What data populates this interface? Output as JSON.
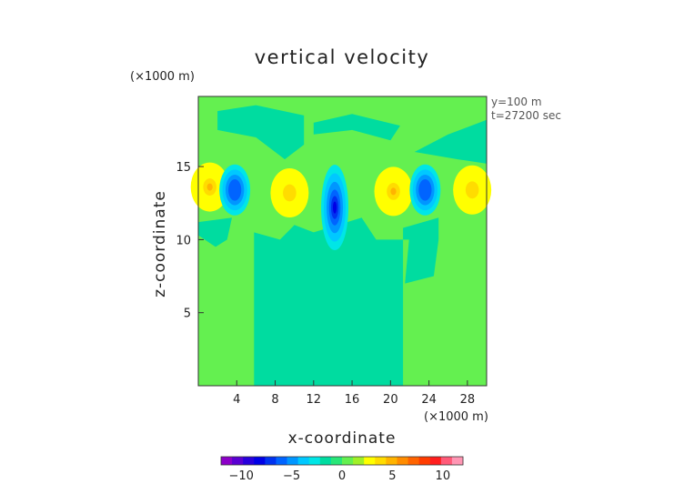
{
  "chart_data": {
    "type": "heatmap",
    "title": "vertical velocity",
    "xlabel": "x-coordinate",
    "ylabel": "z-coordinate",
    "x_unit": "(×1000 m)",
    "y_unit": "(×1000 m)",
    "annotations": [
      "y=100 m",
      "t=27200 sec"
    ],
    "xlim": [
      0,
      30
    ],
    "ylim": [
      0,
      19.8
    ],
    "xticks": [
      4,
      8,
      12,
      16,
      20,
      24,
      28
    ],
    "xtick_labels": [
      "4",
      "8",
      "12",
      "16",
      "20",
      "24",
      "28"
    ],
    "yticks": [
      5,
      10,
      15
    ],
    "ytick_labels": [
      "5",
      "10",
      "15"
    ],
    "grid": false,
    "colorbar": {
      "min": -12,
      "max": 12,
      "tick_values": [
        -10,
        -5,
        0,
        5,
        10
      ],
      "tick_labels": [
        "−10",
        "−5",
        "0",
        "5",
        "10"
      ],
      "colors": [
        "#8c00c8",
        "#5a00d2",
        "#2800dc",
        "#0000e6",
        "#0032f0",
        "#0064ff",
        "#0096ff",
        "#00c8ff",
        "#00e6e6",
        "#00dca0",
        "#28e678",
        "#64f050",
        "#a0f028",
        "#ffff00",
        "#ffdc00",
        "#ffb400",
        "#ff8c00",
        "#ff6400",
        "#ff3c00",
        "#ff1e1e",
        "#ff5a78",
        "#ff96b4"
      ]
    },
    "field_features": [
      {
        "kind": "max",
        "x": 1.2,
        "z": 13.6,
        "value": 3.2
      },
      {
        "kind": "min",
        "x": 3.8,
        "z": 13.4,
        "value": -4.5
      },
      {
        "kind": "max",
        "x": 9.5,
        "z": 13.2,
        "value": 2.6
      },
      {
        "kind": "min",
        "x": 14.2,
        "z": 12.2,
        "value": -7.0
      },
      {
        "kind": "max",
        "x": 20.3,
        "z": 13.3,
        "value": 3.1
      },
      {
        "kind": "min",
        "x": 23.6,
        "z": 13.4,
        "value": -4.5
      },
      {
        "kind": "max",
        "x": 28.5,
        "z": 13.4,
        "value": 2.4
      }
    ]
  }
}
